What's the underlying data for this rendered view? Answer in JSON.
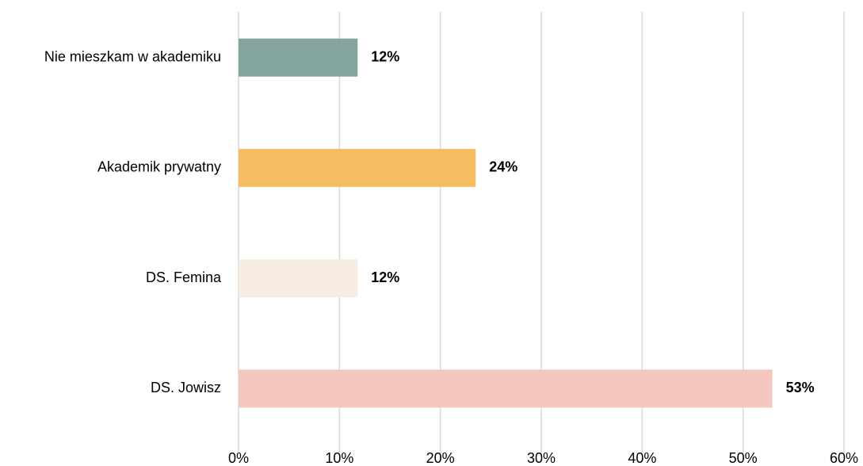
{
  "chart_data": {
    "type": "hbar",
    "categories": [
      "Nie mieszkam w akademiku",
      "Akademik prywatny",
      "DS. Femina",
      "DS. Jowisz"
    ],
    "values": [
      11.8,
      23.5,
      11.8,
      52.9
    ],
    "value_labels": [
      "12%",
      "24%",
      "12%",
      "53%"
    ],
    "colors": [
      "#84a59d",
      "#f5bd63",
      "#f7ede2",
      "#f4c7c1"
    ],
    "xlim": [
      0,
      60
    ],
    "xticks": [
      {
        "value": 0,
        "label": "0%"
      },
      {
        "value": 10,
        "label": "10%"
      },
      {
        "value": 20,
        "label": "20%"
      },
      {
        "value": 30,
        "label": "30%"
      },
      {
        "value": 40,
        "label": "40%"
      },
      {
        "value": 50,
        "label": "50%"
      },
      {
        "value": 60,
        "label": "60%"
      }
    ],
    "grid": true
  }
}
